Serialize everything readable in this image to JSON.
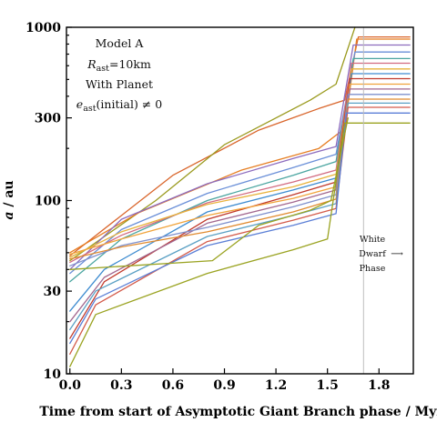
{
  "chart_data": {
    "type": "line",
    "title": "",
    "xlabel": "Time from start of Asymptotic Giant Branch phase / Myr",
    "ylabel": "a / au",
    "ylabel_italic": "a",
    "ylabel_rest": " / au",
    "xlim": [
      -0.02,
      2.0
    ],
    "ylim": [
      10,
      1000
    ],
    "yscale": "log",
    "x_ticks": [
      0.0,
      0.3,
      0.6,
      0.9,
      1.2,
      1.5,
      1.8
    ],
    "x_tick_labels": [
      "0.0",
      "0.3",
      "0.6",
      "0.9",
      "1.2",
      "1.5",
      "1.8"
    ],
    "y_ticks": [
      10,
      30,
      100,
      300,
      1000
    ],
    "y_tick_labels": [
      "10",
      "30",
      "100",
      "300",
      "1000"
    ],
    "grid": false,
    "legend": "none",
    "annotations": {
      "model": "Model A",
      "r_sym": "R",
      "r_sub": "ast",
      "r_val": "=10km",
      "planet": "With Planet",
      "e_sym": "e",
      "e_sub": "ast",
      "e_rest": "(initial) ≠ 0",
      "wd_line1": "White",
      "wd_line2": "Dwarf",
      "wd_line3": "Phase",
      "wd_arrow": "⟶"
    },
    "white_dwarf_start": 1.71,
    "series": [
      {
        "color": "#d9652b",
        "values": [
          [
            0.0,
            48
          ],
          [
            0.6,
            140
          ],
          [
            1.1,
            255
          ],
          [
            1.45,
            340
          ],
          [
            1.6,
            380
          ],
          [
            1.68,
            880
          ],
          [
            1.98,
            880
          ]
        ]
      },
      {
        "color": "#9a9a1e",
        "values": [
          [
            0.0,
            45
          ],
          [
            0.5,
            100
          ],
          [
            0.9,
            210
          ],
          [
            1.4,
            380
          ],
          [
            1.55,
            470
          ],
          [
            1.66,
            1000
          ]
        ]
      },
      {
        "color": "#e67e22",
        "values": [
          [
            0.0,
            50
          ],
          [
            0.4,
            85
          ],
          [
            1.0,
            150
          ],
          [
            1.45,
            200
          ],
          [
            1.6,
            260
          ],
          [
            1.67,
            855
          ],
          [
            1.98,
            855
          ]
        ]
      },
      {
        "color": "#8d6bbd",
        "values": [
          [
            0.0,
            40
          ],
          [
            0.3,
            78
          ],
          [
            0.8,
            125
          ],
          [
            1.3,
            175
          ],
          [
            1.55,
            205
          ],
          [
            1.65,
            790
          ],
          [
            1.98,
            790
          ]
        ]
      },
      {
        "color": "#6a8fd8",
        "values": [
          [
            0.0,
            38
          ],
          [
            0.3,
            68
          ],
          [
            0.8,
            110
          ],
          [
            1.3,
            155
          ],
          [
            1.55,
            185
          ],
          [
            1.66,
            720
          ],
          [
            1.98,
            720
          ]
        ]
      },
      {
        "color": "#4aa5a0",
        "values": [
          [
            0.0,
            34
          ],
          [
            0.3,
            60
          ],
          [
            0.8,
            100
          ],
          [
            1.3,
            140
          ],
          [
            1.55,
            168
          ],
          [
            1.65,
            660
          ],
          [
            1.98,
            660
          ]
        ]
      },
      {
        "color": "#d26a80",
        "values": [
          [
            0.0,
            44
          ],
          [
            0.3,
            63
          ],
          [
            0.8,
            97
          ],
          [
            1.3,
            128
          ],
          [
            1.55,
            150
          ],
          [
            1.64,
            620
          ],
          [
            1.98,
            620
          ]
        ]
      },
      {
        "color": "#e8b23a",
        "values": [
          [
            0.0,
            47
          ],
          [
            0.3,
            66
          ],
          [
            0.8,
            95
          ],
          [
            1.3,
            120
          ],
          [
            1.55,
            142
          ],
          [
            1.64,
            575
          ],
          [
            1.98,
            575
          ]
        ]
      },
      {
        "color": "#3d8bd0",
        "values": [
          [
            0.0,
            23
          ],
          [
            0.2,
            40
          ],
          [
            0.8,
            86
          ],
          [
            1.3,
            115
          ],
          [
            1.55,
            135
          ],
          [
            1.64,
            540
          ],
          [
            1.98,
            540
          ]
        ]
      },
      {
        "color": "#c0392b",
        "values": [
          [
            0.0,
            16
          ],
          [
            0.2,
            34
          ],
          [
            0.8,
            78
          ],
          [
            1.3,
            108
          ],
          [
            1.55,
            128
          ],
          [
            1.63,
            505
          ],
          [
            1.98,
            505
          ]
        ]
      },
      {
        "color": "#f0a33a",
        "values": [
          [
            0.0,
            49
          ],
          [
            0.3,
            60
          ],
          [
            0.8,
            82
          ],
          [
            1.3,
            103
          ],
          [
            1.55,
            120
          ],
          [
            1.63,
            470
          ],
          [
            1.98,
            470
          ]
        ]
      },
      {
        "color": "#a2678f",
        "values": [
          [
            0.0,
            20
          ],
          [
            0.2,
            36
          ],
          [
            0.8,
            74
          ],
          [
            1.3,
            98
          ],
          [
            1.55,
            115
          ],
          [
            1.63,
            440
          ],
          [
            1.98,
            440
          ]
        ]
      },
      {
        "color": "#7f90cc",
        "values": [
          [
            0.0,
            42
          ],
          [
            0.3,
            55
          ],
          [
            0.8,
            70
          ],
          [
            1.3,
            92
          ],
          [
            1.55,
            108
          ],
          [
            1.62,
            410
          ],
          [
            1.98,
            410
          ]
        ]
      },
      {
        "color": "#e08a2f",
        "values": [
          [
            0.0,
            46
          ],
          [
            0.3,
            54
          ],
          [
            0.8,
            66
          ],
          [
            1.3,
            86
          ],
          [
            1.55,
            102
          ],
          [
            1.62,
            385
          ],
          [
            1.98,
            385
          ]
        ]
      },
      {
        "color": "#5aa0c4",
        "values": [
          [
            0.0,
            18
          ],
          [
            0.15,
            30
          ],
          [
            0.8,
            62
          ],
          [
            1.3,
            82
          ],
          [
            1.55,
            96
          ],
          [
            1.62,
            365
          ],
          [
            1.98,
            365
          ]
        ]
      },
      {
        "color": "#d35a4a",
        "values": [
          [
            0.0,
            13
          ],
          [
            0.15,
            25
          ],
          [
            0.8,
            58
          ],
          [
            1.3,
            77
          ],
          [
            1.55,
            90
          ],
          [
            1.62,
            345
          ],
          [
            1.98,
            345
          ]
        ]
      },
      {
        "color": "#5b7fd6",
        "values": [
          [
            0.0,
            15
          ],
          [
            0.15,
            27
          ],
          [
            0.8,
            55
          ],
          [
            1.3,
            72
          ],
          [
            1.55,
            84
          ],
          [
            1.61,
            320
          ],
          [
            1.98,
            320
          ]
        ]
      },
      {
        "color": "#9aa321",
        "values": [
          [
            0.0,
            11
          ],
          [
            0.15,
            22
          ],
          [
            0.8,
            38
          ],
          [
            1.3,
            52
          ],
          [
            1.5,
            60
          ],
          [
            1.6,
            280
          ],
          [
            1.98,
            280
          ]
        ]
      },
      {
        "color": "#9aa321",
        "values": [
          [
            0.0,
            40
          ],
          [
            0.83,
            45
          ],
          [
            1.1,
            72
          ],
          [
            1.4,
            88
          ],
          [
            1.52,
            100
          ],
          [
            1.62,
            300
          ]
        ]
      }
    ]
  }
}
